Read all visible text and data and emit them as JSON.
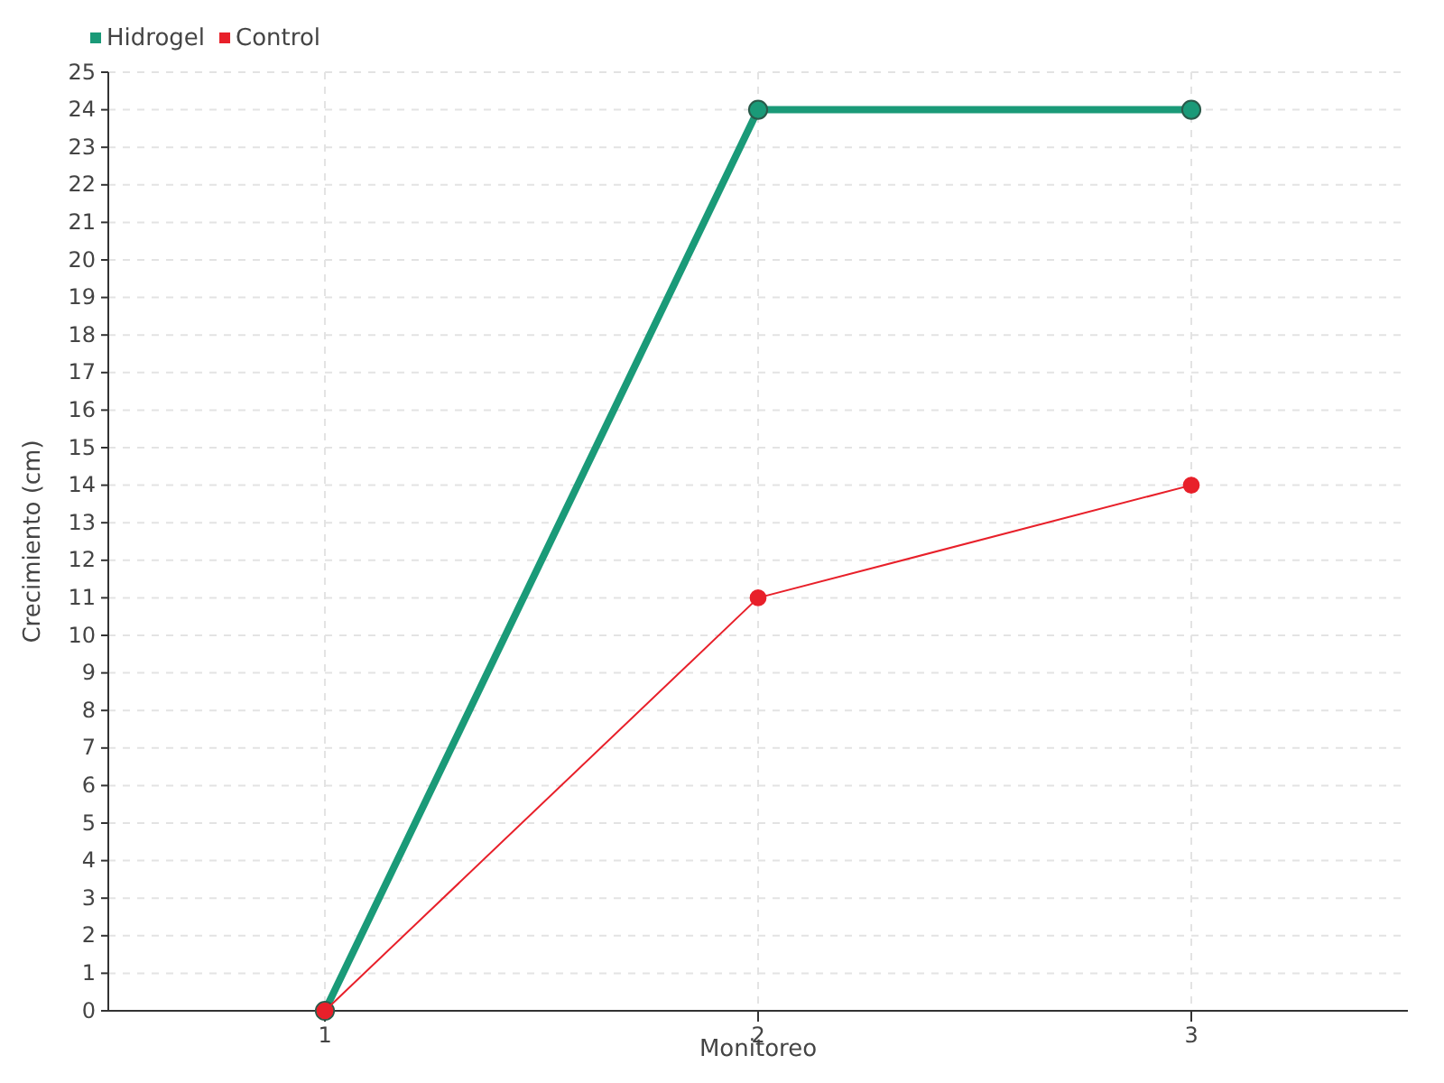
{
  "chart_data": {
    "type": "line",
    "xlabel": "Monitoreo",
    "ylabel": "Crecimiento (cm)",
    "categories": [
      "1",
      "2",
      "3"
    ],
    "series": [
      {
        "name": "Hidrogel",
        "color": "#1a9a78",
        "values": [
          0,
          24,
          24
        ]
      },
      {
        "name": "Control",
        "color": "#e8202a",
        "values": [
          0,
          11,
          14
        ]
      }
    ],
    "ylim": [
      0,
      25
    ],
    "yticks": [
      0,
      1,
      2,
      3,
      4,
      5,
      6,
      7,
      8,
      9,
      10,
      11,
      12,
      13,
      14,
      15,
      16,
      17,
      18,
      19,
      20,
      21,
      22,
      23,
      24,
      25
    ],
    "grid": true,
    "legend": "top left",
    "marker": "circle",
    "line_style": "solid"
  }
}
